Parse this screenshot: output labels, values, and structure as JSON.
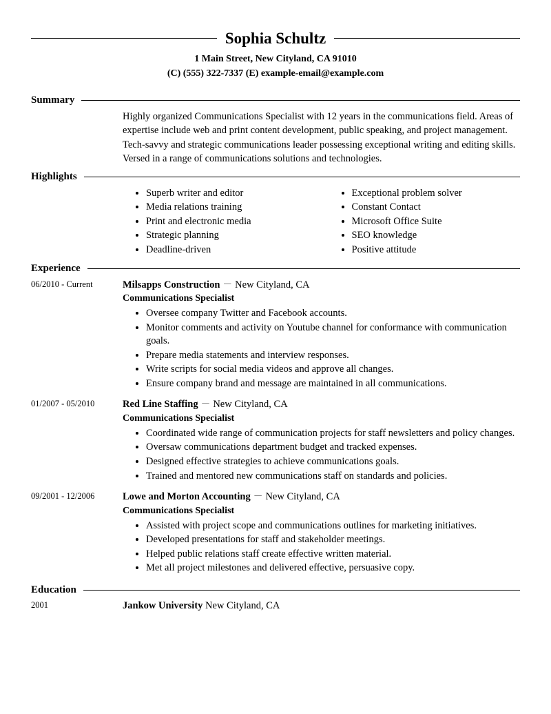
{
  "header": {
    "name": "Sophia Schultz",
    "address": "1 Main Street, New Cityland, CA 91010",
    "contact": "(C) (555) 322-7337 (E) example-email@example.com"
  },
  "sections": {
    "summary": {
      "title": "Summary",
      "text": "Highly organized Communications Specialist with 12 years in the communications field. Areas of expertise include web and print content development, public speaking, and project management. Tech-savvy and strategic communications leader possessing exceptional writing and editing skills. Versed in a range of communications solutions and technologies."
    },
    "highlights": {
      "title": "Highlights",
      "col1": [
        "Superb writer and editor",
        "Media relations training",
        "Print and electronic media",
        "Strategic planning",
        "Deadline-driven"
      ],
      "col2": [
        "Exceptional problem solver",
        "Constant Contact",
        "Microsoft Office Suite",
        "SEO knowledge",
        "Positive attitude"
      ]
    },
    "experience": {
      "title": "Experience",
      "jobs": [
        {
          "dates": "06/2010 - Current",
          "company": "Milsapps Construction",
          "location": "New Cityland, CA",
          "title": "Communications Specialist",
          "bullets": [
            "Oversee company Twitter and Facebook accounts.",
            "Monitor comments and activity on Youtube channel for conformance with communication goals.",
            "Prepare media statements and interview responses.",
            "Write scripts for social media videos and approve all changes.",
            "Ensure company brand and message are maintained in all communications."
          ]
        },
        {
          "dates": "01/2007 - 05/2010",
          "company": "Red Line Staffing",
          "location": "New Cityland, CA",
          "title": "Communications Specialist",
          "bullets": [
            "Coordinated wide range of communication projects for staff newsletters and policy changes.",
            "Oversaw communications department budget and tracked expenses.",
            "Designed effective strategies to achieve communications goals.",
            "Trained and mentored new communications staff on standards and policies."
          ]
        },
        {
          "dates": "09/2001 - 12/2006",
          "company": "Lowe and Morton Accounting",
          "location": "New Cityland, CA",
          "title": "Communications Specialist",
          "bullets": [
            "Assisted with project scope and communications outlines for marketing initiatives.",
            "Developed presentations for staff and stakeholder meetings.",
            "Helped public relations staff create effective written material.",
            "Met all project milestones and delivered effective, persuasive copy."
          ]
        }
      ]
    },
    "education": {
      "title": "Education",
      "year": "2001",
      "school": "Jankow University",
      "location": "New Cityland, CA"
    }
  }
}
